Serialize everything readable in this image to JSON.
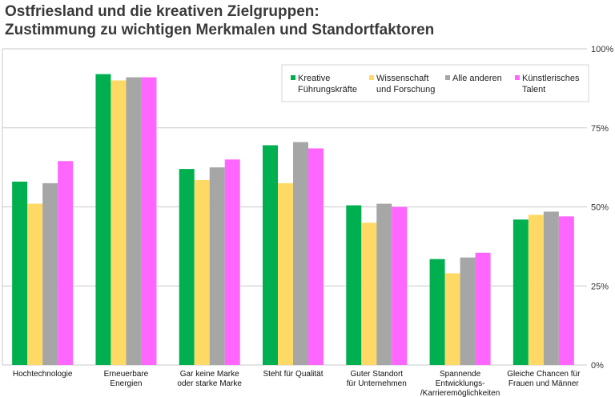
{
  "title_lines": [
    "Ostfriesland und die kreativen Zielgruppen:",
    "Zustimmung zu wichtigen Merkmalen und Standortfaktoren"
  ],
  "chart_data": {
    "type": "bar",
    "categories": [
      [
        "Hochtechnologie"
      ],
      [
        "Erneuerbare",
        "Energien"
      ],
      [
        "Gar keine Marke",
        "oder starke Marke"
      ],
      [
        "Steht für Qualität"
      ],
      [
        "Guter Standort",
        "für Unternehmen"
      ],
      [
        "Spannende",
        "Entwicklungs-",
        "/Karrieremöglichkeiten"
      ],
      [
        "Gleiche Chancen für",
        "Frauen und Männer"
      ]
    ],
    "series": [
      {
        "name": [
          "Kreative",
          "Führungskräfte"
        ],
        "color": "#00b050",
        "values": [
          58,
          92,
          62,
          69.5,
          50.5,
          33.5,
          46
        ]
      },
      {
        "name": [
          "Wissenschaft",
          "und Forschung"
        ],
        "color": "#ffd966",
        "values": [
          51,
          90,
          58.5,
          57.5,
          45,
          29,
          47.5
        ]
      },
      {
        "name": [
          "Alle anderen"
        ],
        "color": "#a6a6a6",
        "values": [
          57.5,
          91,
          62.5,
          70.5,
          51,
          34,
          48.5
        ]
      },
      {
        "name": [
          "Künstlerisches",
          "Talent"
        ],
        "color": "#ff66ff",
        "values": [
          64.5,
          91,
          65,
          68.5,
          50,
          35.5,
          47
        ]
      }
    ],
    "yticks": [
      "0%",
      "25%",
      "50%",
      "75%",
      "100%"
    ],
    "ylim": [
      0,
      100
    ],
    "grid": true,
    "legend_position": "top-right"
  }
}
